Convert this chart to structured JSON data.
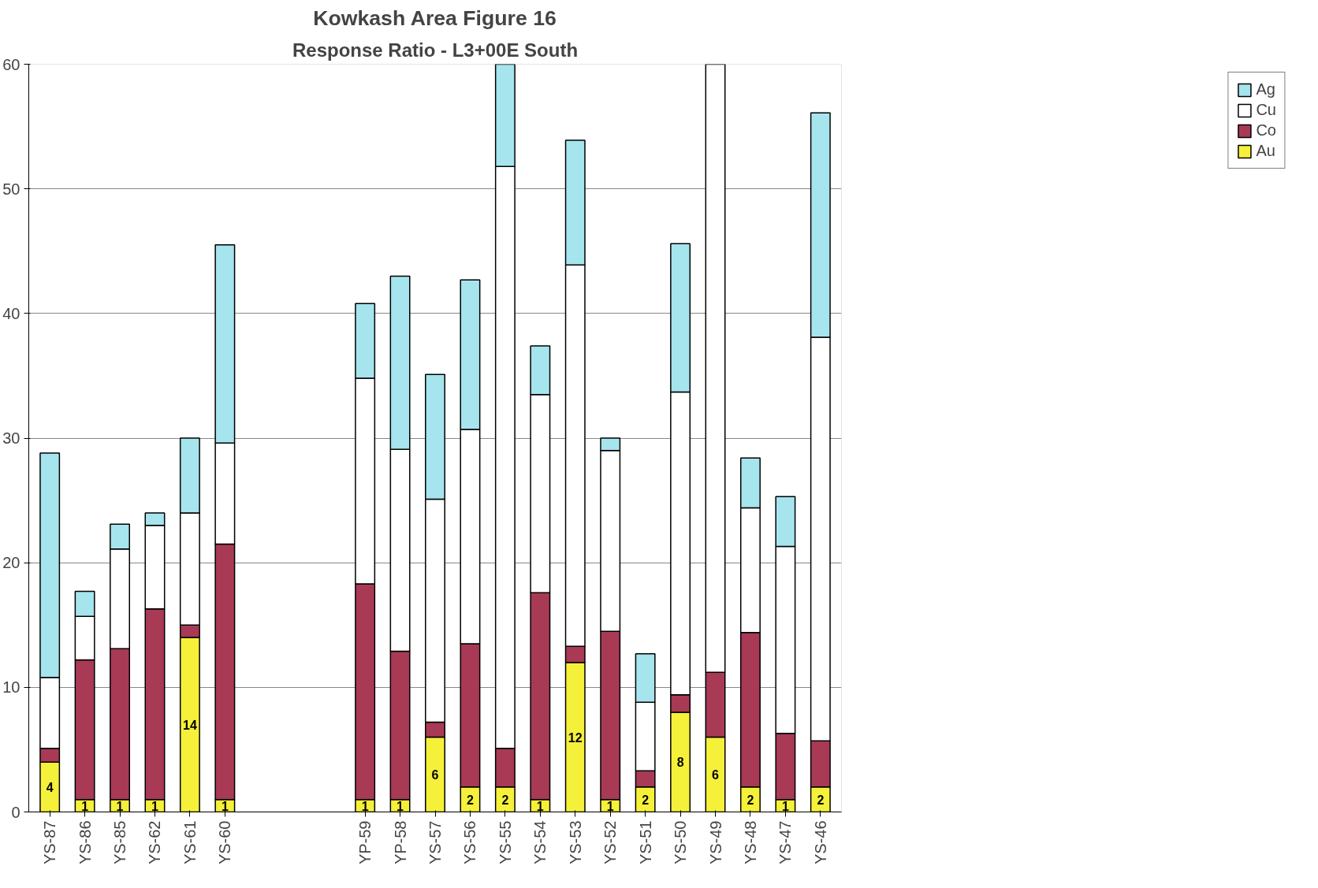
{
  "chart_data": {
    "type": "bar",
    "stacked": true,
    "title": "Kowkash Area Figure 16",
    "subtitle": "Response Ratio - L3+00E South",
    "categories": [
      "YS-87",
      "YS-86",
      "YS-85",
      "YS-62",
      "YS-61",
      "YS-60",
      null,
      null,
      null,
      "YP-59",
      "YP-58",
      "YS-57",
      "YS-56",
      "YS-55",
      "YS-54",
      "YS-53",
      "YS-52",
      "YS-51",
      "YS-50",
      "YS-49",
      "YS-48",
      "YS-47",
      "YS-46"
    ],
    "series": [
      {
        "name": "Au",
        "color": "#f5f03a",
        "values": [
          4,
          1,
          1,
          1,
          14,
          1,
          null,
          null,
          null,
          1,
          1,
          6,
          2,
          2,
          1,
          12,
          1,
          2,
          8,
          6,
          2,
          1,
          2
        ],
        "value_labels": [
          "4",
          "1",
          "1",
          "1",
          "14",
          "1",
          null,
          null,
          null,
          "1",
          "1",
          "6",
          "2",
          "2",
          "1",
          "12",
          "1",
          "2",
          "8",
          "6",
          "2",
          "1",
          "2"
        ]
      },
      {
        "name": "Co",
        "color": "#a83a55",
        "values": [
          1.1,
          11.2,
          12.1,
          15.3,
          1,
          20.5,
          null,
          null,
          null,
          17.3,
          11.9,
          1.2,
          11.5,
          3.1,
          16.6,
          1.3,
          13.5,
          1.3,
          1.4,
          5.2,
          12.4,
          5.3,
          3.7
        ]
      },
      {
        "name": "Cu",
        "color": "#ffffff",
        "values": [
          5.7,
          3.5,
          8,
          6.7,
          9,
          8.1,
          null,
          null,
          null,
          16.5,
          16.2,
          17.9,
          17.2,
          46.7,
          15.9,
          30.6,
          14.5,
          5.5,
          24.3,
          48.8,
          10,
          15,
          32.4
        ]
      },
      {
        "name": "Ag",
        "color": "#a6e4ee",
        "values": [
          18,
          2,
          2,
          1,
          6,
          15.9,
          null,
          null,
          null,
          6,
          13.9,
          10,
          12,
          8.2,
          3.9,
          10,
          1,
          3.9,
          11.9,
          null,
          4,
          4,
          18
        ]
      }
    ],
    "ylim": [
      0,
      60
    ],
    "yticks": [
      0,
      10,
      20,
      30,
      40,
      50,
      60
    ],
    "grid": "y",
    "legend": "top right"
  }
}
